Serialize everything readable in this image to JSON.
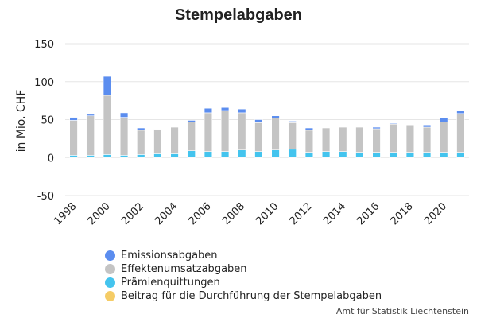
{
  "chart_data": {
    "type": "bar",
    "stacked": true,
    "title": "Stempelabgaben",
    "ylabel": "in Mio. CHF",
    "xlabel": "",
    "ylim": [
      -50,
      150
    ],
    "yticks": [
      -50,
      0,
      50,
      100,
      150
    ],
    "xtick_labels": [
      "1998",
      "2000",
      "2002",
      "2004",
      "2006",
      "2008",
      "2010",
      "2012",
      "2014",
      "2016",
      "2018",
      "2020"
    ],
    "grid": true,
    "legend_position": "bottom-left",
    "categories": [
      "1998",
      "1999",
      "2000",
      "2001",
      "2002",
      "2003",
      "2004",
      "2005",
      "2006",
      "2007",
      "2008",
      "2009",
      "2010",
      "2011",
      "2012",
      "2013",
      "2014",
      "2015",
      "2016",
      "2017",
      "2018",
      "2019",
      "2020",
      "2021"
    ],
    "series": [
      {
        "name": "Prämienquittungen",
        "color": "#44c4ee",
        "values": [
          3,
          3,
          4,
          3,
          4,
          5,
          5,
          9,
          8,
          8,
          10,
          8,
          10,
          11,
          7,
          8,
          8,
          7,
          7,
          7,
          7,
          7,
          7,
          7
        ]
      },
      {
        "name": "Effektenumsatzabgaben",
        "color": "#c4c4c4",
        "values": [
          46,
          52,
          78,
          50,
          32,
          32,
          35,
          38,
          51,
          54,
          49,
          38,
          42,
          35,
          29,
          31,
          32,
          33,
          31,
          37,
          36,
          33,
          40,
          51
        ]
      },
      {
        "name": "Emissionsabgaben",
        "color": "#5b8def",
        "values": [
          4,
          2,
          25,
          6,
          3,
          0,
          0,
          2,
          6,
          4,
          5,
          4,
          3,
          2,
          3,
          0,
          0,
          0,
          2,
          1,
          0,
          3,
          5,
          4
        ]
      },
      {
        "name": "Beitrag für die Durchführung der Stempelabgaben",
        "color": "#f5cc66",
        "values": [
          0,
          0,
          0,
          0,
          0,
          0,
          0,
          0,
          0,
          0,
          0,
          0,
          0,
          0,
          0,
          0,
          0,
          0,
          0,
          0,
          0,
          0,
          0,
          0
        ]
      }
    ]
  },
  "legend": [
    {
      "label": "Emissionsabgaben",
      "color": "#5b8def"
    },
    {
      "label": "Effektenumsatzabgaben",
      "color": "#c4c4c4"
    },
    {
      "label": "Prämienquittungen",
      "color": "#44c4ee"
    },
    {
      "label": "Beitrag für die Durchführung der Stempelabgaben",
      "color": "#f5cc66"
    }
  ],
  "credit": "Amt für Statistik Liechtenstein"
}
